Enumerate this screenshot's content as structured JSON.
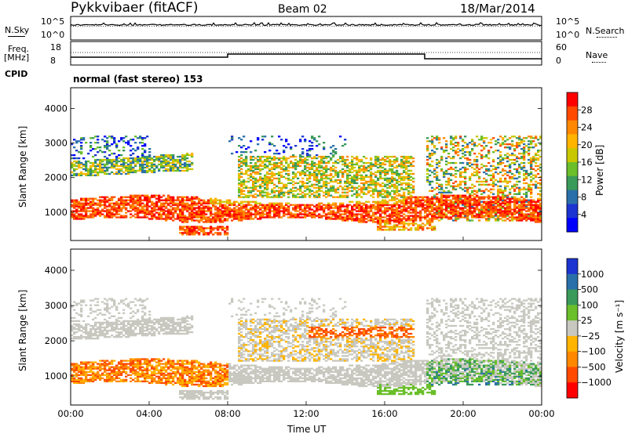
{
  "header": {
    "station": "Pykkvibaer (fitACF)",
    "beam": "Beam 02",
    "date": "18/Mar/2014"
  },
  "panels": {
    "nsky": {
      "label": "N.Sky",
      "left_ticks": [
        "10^5",
        "10^0"
      ],
      "right_label": "N.Search",
      "right_ticks": [
        "10^5",
        "10^0"
      ]
    },
    "freq": {
      "label_line1": "Freq.",
      "label_line2": "[MHz]",
      "left_ticks": [
        "18",
        "8"
      ],
      "right_label": "Nave",
      "right_ticks": [
        "60",
        "0"
      ]
    },
    "cpid": {
      "label": "CPID",
      "text": "normal (fast stereo) 153"
    }
  },
  "chart_data": [
    {
      "type": "heatmap",
      "title": "",
      "ylabel": "Slant Range [km]",
      "ylim": [
        180,
        4600
      ],
      "yticks": [
        "4000",
        "3000",
        "2000",
        "1000"
      ],
      "colorbar_label": "Power [dB]",
      "colorbar_ticks": [
        "28",
        "24",
        "20",
        "16",
        "12",
        "8",
        "4"
      ],
      "colorbar_colors": [
        "#ff0000",
        "#ff4a00",
        "#ff8800",
        "#ffb400",
        "#c8c800",
        "#6abf2a",
        "#3a9a5a",
        "#2a70a8",
        "#1c34d0",
        "#0000ff"
      ],
      "regions": [
        {
          "band": "E-region echoes",
          "t_start": "00:00",
          "t_end": "24:00",
          "range_km": [
            800,
            1300
          ],
          "level": "high"
        },
        {
          "band": "F-region echoes",
          "t_start": "00:00",
          "t_end": "06:00",
          "range_km": [
            2000,
            2500
          ],
          "level": "medium"
        },
        {
          "band": "F-region echoes",
          "t_start": "09:00",
          "t_end": "17:00",
          "range_km": [
            1200,
            2600
          ],
          "level": "medium"
        },
        {
          "band": "near-range echoes",
          "t_start": "06:00",
          "t_end": "08:00",
          "range_km": [
            350,
            550
          ],
          "level": "high"
        },
        {
          "band": "late echoes",
          "t_start": "18:00",
          "t_end": "24:00",
          "range_km": [
            700,
            3200
          ],
          "level": "mixed"
        }
      ]
    },
    {
      "type": "heatmap",
      "title": "",
      "ylabel": "Slant Range [km]",
      "ylim": [
        180,
        4600
      ],
      "yticks": [
        "4000",
        "3000",
        "2000",
        "1000"
      ],
      "colorbar_label": "Velocity [m s⁻¹]",
      "colorbar_ticks": [
        "1000",
        "500",
        "100",
        "25",
        "−25",
        "−100",
        "−500",
        "−1000"
      ],
      "colorbar_colors": [
        "#1c34d0",
        "#2a70a8",
        "#3a9a5a",
        "#6abf2a",
        "#c8c8c0",
        "#ffb400",
        "#ff8800",
        "#ff4a00",
        "#ff0000"
      ],
      "xlabel": "Time UT",
      "xticks": [
        "00:00",
        "04:00",
        "08:00",
        "12:00",
        "16:00",
        "20:00",
        "00:00"
      ],
      "xlim": [
        "00:00",
        "24:00"
      ]
    }
  ]
}
